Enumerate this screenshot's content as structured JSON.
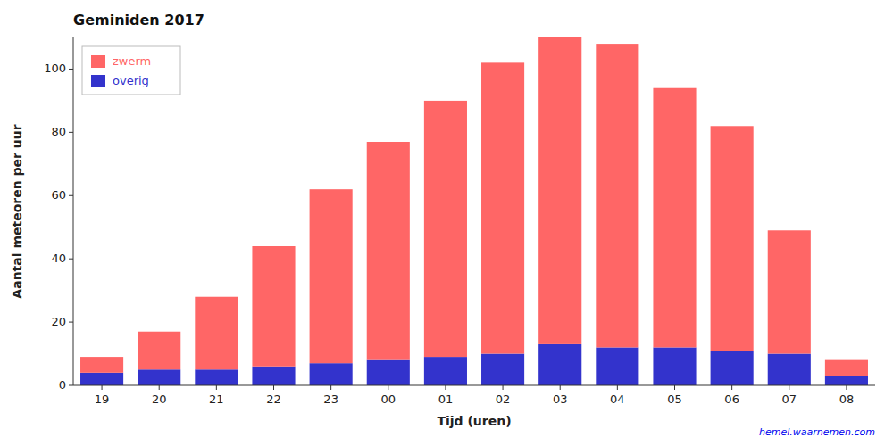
{
  "chart_data": {
    "type": "bar",
    "stacked": true,
    "title": "Geminiden 2017",
    "x_label": "Tijd (uren)",
    "y_label": "Aantal meteoren per uur",
    "categories": [
      "19",
      "20",
      "21",
      "22",
      "23",
      "00",
      "01",
      "02",
      "03",
      "04",
      "05",
      "06",
      "07",
      "08"
    ],
    "series": [
      {
        "name": "overig",
        "color": "#3333CC",
        "values": [
          4,
          5,
          5,
          6,
          7,
          8,
          9,
          10,
          13,
          12,
          12,
          11,
          10,
          3
        ]
      },
      {
        "name": "zwerm",
        "color": "#FF6666",
        "values": [
          5,
          12,
          23,
          38,
          55,
          69,
          81,
          92,
          97,
          96,
          82,
          71,
          39,
          5
        ]
      }
    ],
    "ylim": [
      0,
      110
    ],
    "yticks": [
      0,
      20,
      40,
      60,
      80,
      100
    ],
    "grid": false,
    "legend": "upper left",
    "annotations": [
      {
        "text": "hemel.waarnemen.com",
        "color": "#0000EE"
      }
    ]
  }
}
